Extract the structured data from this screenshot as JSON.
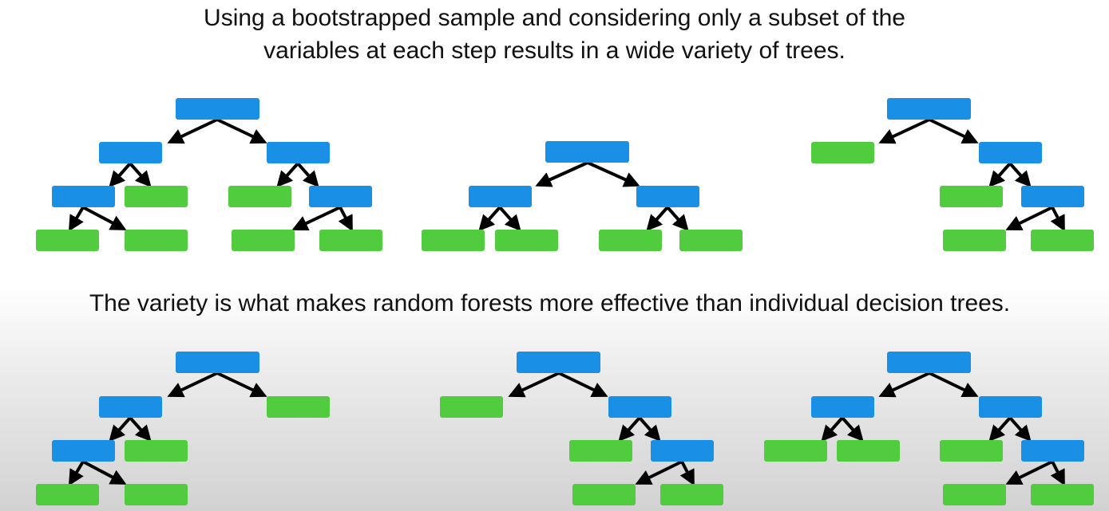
{
  "captions": {
    "top_line_1": "Using a bootstrapped sample and considering only a subset of the",
    "top_line_2": "variables at each step results in a wide variety of trees.",
    "middle": "The variety is what makes random forests more effective than individual decision trees."
  },
  "colors": {
    "split_node": "#1a8fe6",
    "leaf_node": "#50cc3e",
    "arrow": "#000000",
    "text": "#111111"
  },
  "legend_semantics": {
    "blue": "split-node",
    "green": "leaf-node"
  },
  "trees": [
    {
      "id": "tree-1",
      "depth_pattern": "root-L(L(leaf,leaf),leaf)-R(leaf,R(leaf,leaf))"
    },
    {
      "id": "tree-2",
      "depth_pattern": "root-L(leaf,leaf)-R(leaf,leaf)"
    },
    {
      "id": "tree-3",
      "depth_pattern": "root-leaf-R(leaf,R(leaf,leaf))"
    },
    {
      "id": "tree-4",
      "depth_pattern": "root-L(L(leaf,leaf),leaf)-leaf"
    },
    {
      "id": "tree-5",
      "depth_pattern": "root-leaf-R(leaf,R(leaf,leaf))"
    },
    {
      "id": "tree-6",
      "depth_pattern": "root-L(leaf,leaf)-R(leaf,R(leaf,leaf))"
    }
  ]
}
